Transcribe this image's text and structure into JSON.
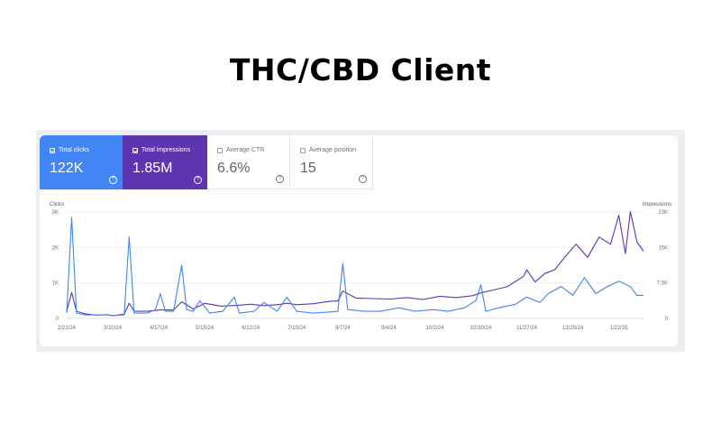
{
  "title": "THC/CBD Client",
  "metrics": [
    {
      "label": "Total clicks",
      "value": "122K",
      "selected": true
    },
    {
      "label": "Total impressions",
      "value": "1.85M",
      "selected": true
    },
    {
      "label": "Average CTR",
      "value": "6.6%",
      "selected": false
    },
    {
      "label": "Average position",
      "value": "15",
      "selected": false
    }
  ],
  "colors": {
    "clicks": "#4285f4",
    "impressions": "#5e35b1",
    "grid": "#e6e8eb"
  },
  "icons": {
    "help": "question-circle-icon",
    "checkbox": "checkbox-icon"
  },
  "chart_data": {
    "type": "line",
    "y_left": {
      "label": "Clicks",
      "ticks": [
        "0",
        "1K",
        "2K",
        "3K"
      ],
      "range": [
        0,
        3000
      ]
    },
    "y_right": {
      "label": "Impressions",
      "ticks": [
        "0",
        "7.5K",
        "15K",
        "23K"
      ],
      "range": [
        0,
        22500
      ]
    },
    "x_ticks": [
      "2/21/24",
      "3/20/24",
      "4/17/24",
      "5/15/24",
      "6/12/24",
      "7/10/24",
      "8/7/24",
      "9/4/24",
      "10/2/24",
      "10/30/24",
      "11/27/24",
      "12/25/24",
      "1/22/25"
    ],
    "x_range": [
      "2024-02-21",
      "2025-02-06"
    ],
    "grid": true,
    "series": [
      {
        "name": "Clicks",
        "axis": "left",
        "points": [
          [
            "2024-02-21",
            150
          ],
          [
            "2024-02-24",
            2850
          ],
          [
            "2024-02-27",
            150
          ],
          [
            "2024-03-03",
            100
          ],
          [
            "2024-03-10",
            100
          ],
          [
            "2024-03-17",
            100
          ],
          [
            "2024-03-20",
            80
          ],
          [
            "2024-03-27",
            100
          ],
          [
            "2024-03-30",
            2300
          ],
          [
            "2024-04-02",
            150
          ],
          [
            "2024-04-10",
            150
          ],
          [
            "2024-04-15",
            250
          ],
          [
            "2024-04-18",
            700
          ],
          [
            "2024-04-21",
            200
          ],
          [
            "2024-04-26",
            200
          ],
          [
            "2024-05-01",
            1500
          ],
          [
            "2024-05-04",
            250
          ],
          [
            "2024-05-08",
            200
          ],
          [
            "2024-05-12",
            500
          ],
          [
            "2024-05-18",
            150
          ],
          [
            "2024-05-26",
            200
          ],
          [
            "2024-06-02",
            600
          ],
          [
            "2024-06-05",
            150
          ],
          [
            "2024-06-14",
            200
          ],
          [
            "2024-06-20",
            450
          ],
          [
            "2024-06-28",
            200
          ],
          [
            "2024-07-04",
            600
          ],
          [
            "2024-07-10",
            200
          ],
          [
            "2024-07-20",
            150
          ],
          [
            "2024-07-30",
            180
          ],
          [
            "2024-08-04",
            200
          ],
          [
            "2024-08-07",
            1550
          ],
          [
            "2024-08-10",
            250
          ],
          [
            "2024-08-20",
            200
          ],
          [
            "2024-08-30",
            200
          ],
          [
            "2024-09-10",
            300
          ],
          [
            "2024-09-20",
            200
          ],
          [
            "2024-10-01",
            250
          ],
          [
            "2024-10-10",
            200
          ],
          [
            "2024-10-20",
            300
          ],
          [
            "2024-10-27",
            500
          ],
          [
            "2024-10-30",
            950
          ],
          [
            "2024-11-02",
            200
          ],
          [
            "2024-11-10",
            300
          ],
          [
            "2024-11-20",
            400
          ],
          [
            "2024-11-27",
            600
          ],
          [
            "2024-12-05",
            450
          ],
          [
            "2024-12-10",
            700
          ],
          [
            "2024-12-18",
            900
          ],
          [
            "2024-12-25",
            650
          ],
          [
            "2025-01-01",
            1150
          ],
          [
            "2025-01-08",
            700
          ],
          [
            "2025-01-15",
            900
          ],
          [
            "2025-01-22",
            1050
          ],
          [
            "2025-01-29",
            900
          ],
          [
            "2025-02-02",
            650
          ],
          [
            "2025-02-06",
            650
          ]
        ]
      },
      {
        "name": "Impressions",
        "axis": "right",
        "points": [
          [
            "2024-02-21",
            1500
          ],
          [
            "2024-02-24",
            5500
          ],
          [
            "2024-02-27",
            1500
          ],
          [
            "2024-03-03",
            1000
          ],
          [
            "2024-03-10",
            700
          ],
          [
            "2024-03-17",
            800
          ],
          [
            "2024-03-20",
            600
          ],
          [
            "2024-03-27",
            900
          ],
          [
            "2024-03-30",
            3200
          ],
          [
            "2024-04-02",
            1500
          ],
          [
            "2024-04-10",
            1500
          ],
          [
            "2024-04-18",
            1800
          ],
          [
            "2024-04-26",
            1800
          ],
          [
            "2024-05-01",
            3500
          ],
          [
            "2024-05-08",
            2000
          ],
          [
            "2024-05-15",
            3200
          ],
          [
            "2024-05-25",
            2600
          ],
          [
            "2024-06-05",
            2800
          ],
          [
            "2024-06-12",
            3000
          ],
          [
            "2024-06-20",
            2700
          ],
          [
            "2024-06-28",
            2900
          ],
          [
            "2024-07-04",
            3200
          ],
          [
            "2024-07-10",
            2900
          ],
          [
            "2024-07-20",
            3100
          ],
          [
            "2024-07-30",
            3600
          ],
          [
            "2024-08-04",
            3700
          ],
          [
            "2024-08-07",
            5800
          ],
          [
            "2024-08-15",
            4300
          ],
          [
            "2024-08-25",
            4200
          ],
          [
            "2024-09-05",
            4100
          ],
          [
            "2024-09-15",
            4400
          ],
          [
            "2024-09-25",
            4000
          ],
          [
            "2024-10-05",
            4700
          ],
          [
            "2024-10-15",
            4400
          ],
          [
            "2024-10-25",
            4800
          ],
          [
            "2024-10-30",
            5400
          ],
          [
            "2024-11-05",
            5900
          ],
          [
            "2024-11-15",
            6700
          ],
          [
            "2024-11-25",
            8900
          ],
          [
            "2024-11-27",
            10300
          ],
          [
            "2024-12-02",
            7700
          ],
          [
            "2024-12-08",
            9500
          ],
          [
            "2024-12-14",
            10300
          ],
          [
            "2024-12-20",
            12900
          ],
          [
            "2024-12-27",
            15700
          ],
          [
            "2025-01-03",
            12900
          ],
          [
            "2025-01-10",
            17200
          ],
          [
            "2025-01-17",
            15700
          ],
          [
            "2025-01-22",
            21800
          ],
          [
            "2025-01-26",
            13700
          ],
          [
            "2025-01-29",
            22600
          ],
          [
            "2025-02-02",
            16200
          ],
          [
            "2025-02-06",
            14200
          ]
        ]
      }
    ]
  }
}
